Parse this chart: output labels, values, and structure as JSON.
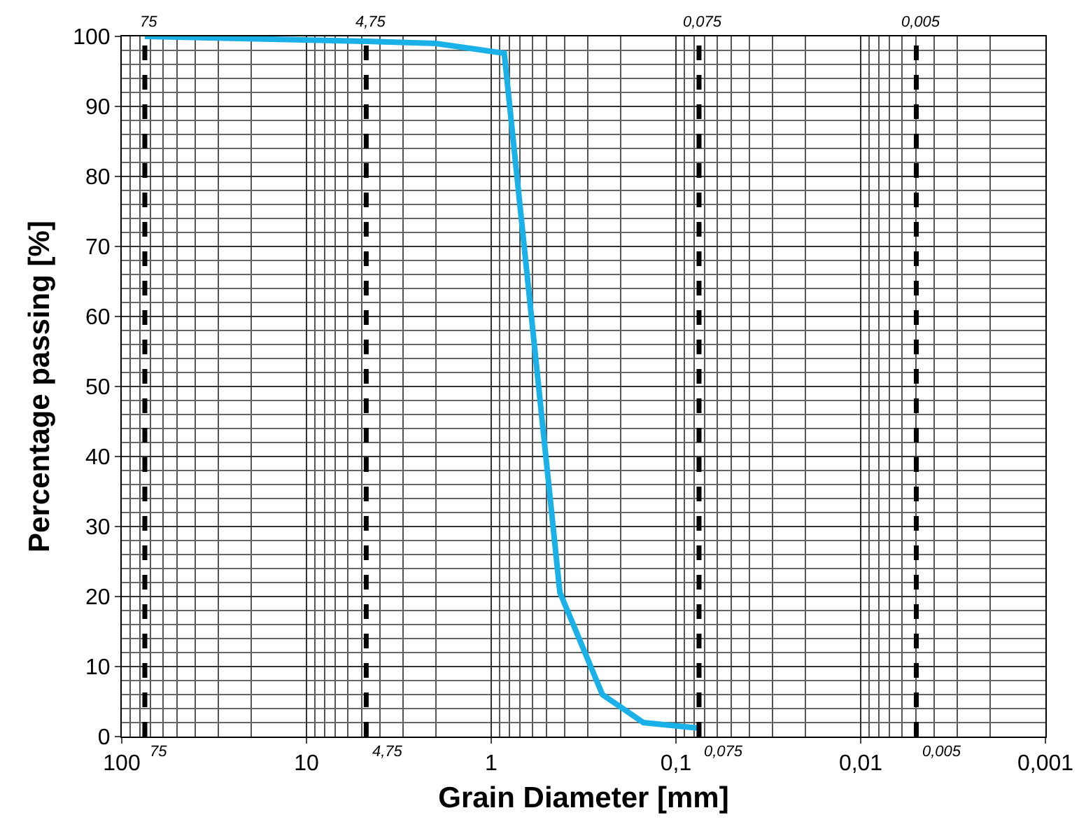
{
  "chart_data": {
    "type": "line",
    "xlabel": "Grain Diameter [mm]",
    "ylabel": "Percentage passing [%]",
    "x": [
      75,
      4.75,
      2,
      0.85,
      0.425,
      0.25,
      0.15,
      0.075
    ],
    "series": [
      {
        "color": "#1ab0e8",
        "values": [
          100,
          99.3,
          99,
          97.6,
          20.6,
          6,
          2,
          1.2
        ]
      }
    ],
    "log": "x",
    "xlim": [
      100,
      0.001
    ],
    "xticks": [
      100,
      10,
      1,
      {
        "value": 0.1,
        "label": "0,1"
      },
      {
        "value": 0.01,
        "label": "0,01"
      },
      {
        "value": 0.001,
        "label": "0,001"
      }
    ],
    "ylim": [
      0,
      100
    ],
    "yticks": [
      0,
      10,
      20,
      30,
      40,
      50,
      60,
      70,
      80,
      90,
      100
    ],
    "grid": true,
    "marker": "none",
    "line_style": "solid",
    "ref_lines": [
      {
        "axis": "x",
        "value": 75,
        "label": "75",
        "color": "#000000",
        "line_style": "dashed"
      },
      {
        "axis": "x",
        "value": 4.75,
        "label": "4,75",
        "color": "#000000",
        "line_style": "dashed"
      },
      {
        "axis": "x",
        "value": 0.075,
        "label": "0,075",
        "color": "#000000",
        "line_style": "dashed"
      },
      {
        "axis": "x",
        "value": 0.005,
        "label": "0,005",
        "color": "#000000",
        "line_style": "dashed"
      }
    ]
  }
}
